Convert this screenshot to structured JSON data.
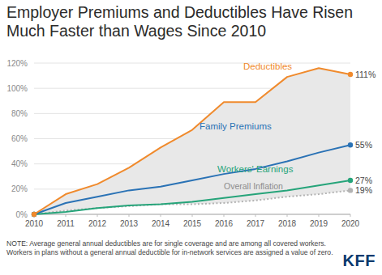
{
  "chart_data": {
    "type": "line",
    "title": "Employer Premiums and Deductibles Have Risen Much Faster than Wages Since 2010",
    "note": "NOTE: Average general annual deductibles are for single coverage and are among all covered workers. Workers in plans without a general annual deductible for in-network services are assigned a value of zero.",
    "logo_text": "KFF",
    "x": [
      2010,
      2011,
      2012,
      2013,
      2014,
      2015,
      2016,
      2017,
      2018,
      2019,
      2020
    ],
    "xlim": [
      2010,
      2020
    ],
    "xticks": [
      2010,
      2011,
      2012,
      2013,
      2014,
      2015,
      2016,
      2017,
      2018,
      2019,
      2020
    ],
    "ylim": [
      0,
      120
    ],
    "yticks": [
      {
        "value": 0,
        "label": "0%"
      },
      {
        "value": 20,
        "label": "20%"
      },
      {
        "value": 40,
        "label": "40%"
      },
      {
        "value": 60,
        "label": "60%"
      },
      {
        "value": 80,
        "label": "80%"
      },
      {
        "value": 100,
        "label": "100%"
      },
      {
        "value": 120,
        "label": "120%"
      }
    ],
    "grid": true,
    "series": [
      {
        "name": "Deductibles",
        "color": "#f08a2c",
        "line_style": "solid",
        "values": [
          0,
          16,
          24,
          37,
          53,
          67,
          89,
          89,
          109,
          116,
          111
        ],
        "value_labels": [
          null,
          null,
          null,
          null,
          null,
          null,
          null,
          null,
          null,
          null,
          "111%"
        ]
      },
      {
        "name": "Family Premiums",
        "color": "#2a72b5",
        "line_style": "solid",
        "values": [
          0,
          9,
          14,
          19,
          22,
          27,
          32,
          36,
          42,
          49,
          55
        ],
        "value_labels": [
          null,
          null,
          null,
          null,
          null,
          null,
          null,
          null,
          null,
          null,
          "55%"
        ]
      },
      {
        "name": "Workers' Earnings",
        "color": "#26a47a",
        "line_style": "solid",
        "values": [
          0,
          2,
          5,
          7,
          8,
          10,
          13,
          16,
          19,
          23,
          27
        ],
        "value_labels": [
          null,
          null,
          null,
          null,
          null,
          null,
          null,
          null,
          null,
          null,
          "27%"
        ]
      },
      {
        "name": "Overall Inflation",
        "color": "#b3b3b3",
        "line_style": "dotted",
        "values": [
          0,
          3,
          5,
          6.5,
          8,
          8,
          9,
          11,
          14,
          16,
          19
        ],
        "value_labels": [
          null,
          null,
          null,
          null,
          null,
          null,
          null,
          null,
          null,
          null,
          "19%"
        ]
      }
    ]
  }
}
